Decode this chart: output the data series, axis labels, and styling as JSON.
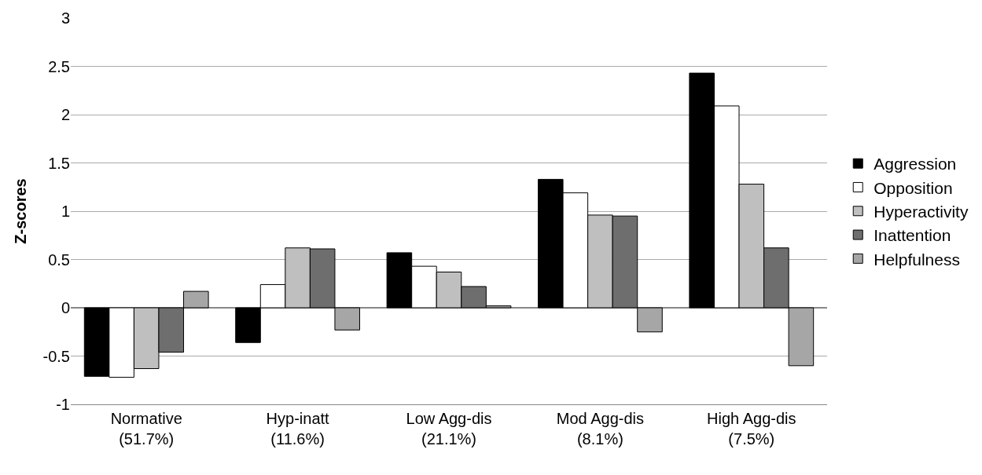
{
  "chart_data": {
    "type": "bar",
    "ylabel": "Z-scores",
    "categories": [
      "Normative\n(51.7%)",
      "Hyp-inatt\n(11.6%)",
      "Low Agg-dis\n(21.1%)",
      "Mod Agg-dis\n(8.1%)",
      "High Agg-dis\n(7.5%)"
    ],
    "series": [
      {
        "name": "Aggression",
        "color": "#000000",
        "values": [
          -0.71,
          -0.36,
          0.57,
          1.33,
          2.43
        ]
      },
      {
        "name": "Opposition",
        "color": "#ffffff",
        "values": [
          -0.72,
          0.24,
          0.43,
          1.19,
          2.09
        ]
      },
      {
        "name": "Hyperactivity",
        "color": "#bfbfbf",
        "values": [
          -0.63,
          0.62,
          0.37,
          0.96,
          1.28
        ]
      },
      {
        "name": "Inattention",
        "color": "#6e6e6e",
        "values": [
          -0.46,
          0.61,
          0.22,
          0.95,
          0.62
        ]
      },
      {
        "name": "Helpfulness",
        "color": "#a6a6a6",
        "values": [
          0.17,
          -0.23,
          0.02,
          -0.25,
          -0.6
        ]
      }
    ],
    "ylim": [
      -1,
      3
    ],
    "yticks": [
      -1,
      -0.5,
      0,
      0.5,
      1,
      1.5,
      2,
      2.5,
      3
    ],
    "grid": "y",
    "legend": "right"
  }
}
